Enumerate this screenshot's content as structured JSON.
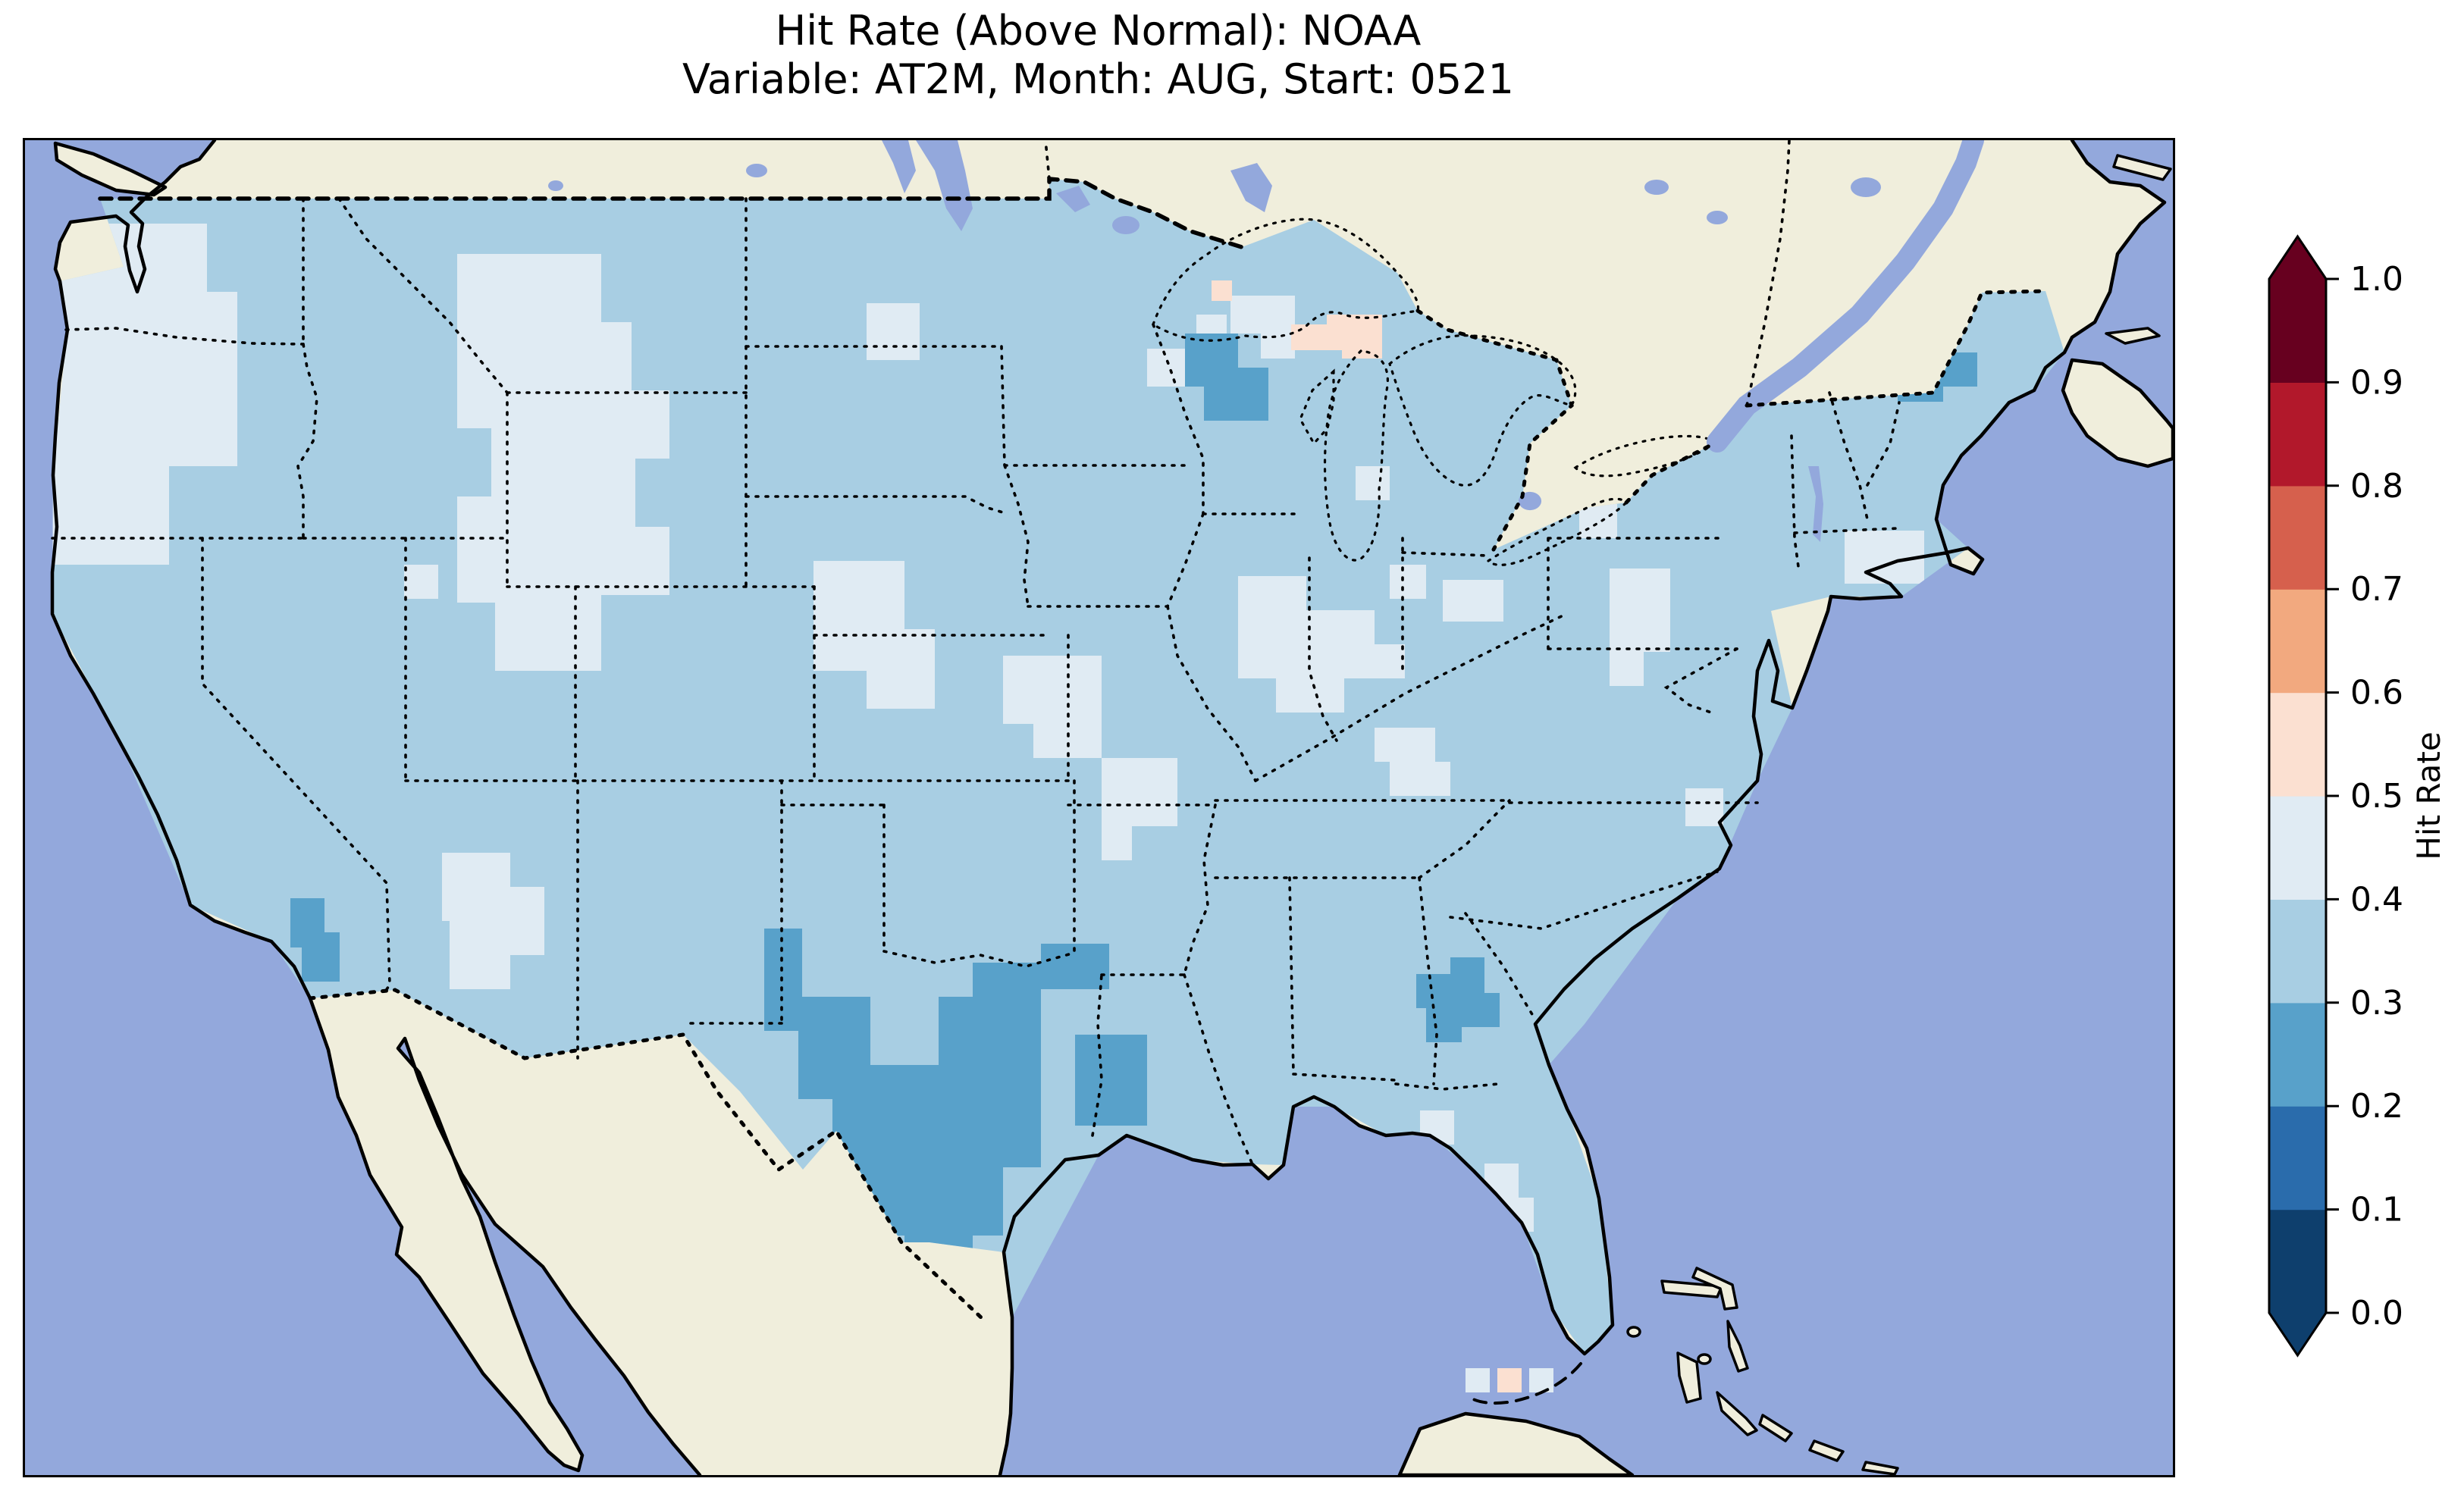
{
  "title": {
    "line1": "Hit Rate (Above Normal): NOAA",
    "line2": "Variable: AT2M, Month: AUG, Start: 0521"
  },
  "colorbar": {
    "label": "Hit Rate",
    "ticks": [
      "1.0",
      "0.9",
      "0.8",
      "0.7",
      "0.6",
      "0.5",
      "0.4",
      "0.3",
      "0.2",
      "0.1",
      "0.0"
    ],
    "tick_values": [
      1.0,
      0.9,
      0.8,
      0.7,
      0.6,
      0.5,
      0.4,
      0.3,
      0.2,
      0.1,
      0.0
    ],
    "extend": "both",
    "levels_bottom_to_top": [
      {
        "range": "0.0–0.1",
        "color": "#0e3f6d"
      },
      {
        "range": "0.1–0.2",
        "color": "#2a6cac"
      },
      {
        "range": "0.2–0.3",
        "color": "#58a1ca"
      },
      {
        "range": "0.3–0.4",
        "color": "#a8cee3"
      },
      {
        "range": "0.4–0.5",
        "color": "#e0ebf3"
      },
      {
        "range": "0.5–0.6",
        "color": "#fbe0d1"
      },
      {
        "range": "0.6–0.7",
        "color": "#f2a97f"
      },
      {
        "range": "0.7–0.8",
        "color": "#d6604d"
      },
      {
        "range": "0.8–0.9",
        "color": "#b2182b"
      },
      {
        "range": "0.9–1.0",
        "color": "#67001f"
      }
    ],
    "extend_over_color": "#67001f",
    "extend_under_color": "#0e3f6d"
  },
  "colors": {
    "ocean": "#93a8dc",
    "lakes": "#8fa5da",
    "land": "#f0eedc",
    "coastline": "#000000",
    "background": "#ffffff"
  },
  "chart_data": {
    "type": "heatmap",
    "title": "Hit Rate (Above Normal): NOAA",
    "subtitle": "Variable: AT2M, Month: AUG, Start: 0521",
    "metric": "Hit Rate (Above Normal)",
    "source": "NOAA",
    "variable": "AT2M",
    "month": "AUG",
    "start": "0521",
    "region": "Contiguous United States, ~1-degree gridded cells on a map with Canada/Mexico masked (land only)",
    "colorbar_label": "Hit Rate",
    "axis_ticks": [
      0.0,
      0.1,
      0.2,
      0.3,
      0.4,
      0.5,
      0.6,
      0.7,
      0.8,
      0.9,
      1.0
    ],
    "colormap": "Discrete RdBu_r, 10 bins from 0.0 to 1.0, extended (pointed arrows) both ends",
    "legend_position": "right vertical colorbar",
    "grid": "off",
    "values_by_region": [
      {
        "region": "Most of CONUS (baseline)",
        "hit_rate": "0.3–0.4"
      },
      {
        "region": "Western Washington / western Oregon",
        "hit_rate": "0.4–0.5"
      },
      {
        "region": "Montana – Wyoming – Utah/Colorado band",
        "hit_rate": "0.4–0.5"
      },
      {
        "region": "Central North/South Dakota cells",
        "hit_rate": "0.4–0.5"
      },
      {
        "region": "Nebraska / Kansas / western Missouri band",
        "hit_rate": "0.4–0.5"
      },
      {
        "region": "Central Arizona",
        "hit_rate": "0.4–0.5"
      },
      {
        "region": "Illinois–Indiana patch",
        "hit_rate": "0.4–0.5"
      },
      {
        "region": "Kentucky patch",
        "hit_rate": "0.4–0.5"
      },
      {
        "region": "Southern Missouri patch",
        "hit_rate": "0.4–0.5"
      },
      {
        "region": "Central Pennsylvania / Maryland patch",
        "hit_rate": "0.4–0.5"
      },
      {
        "region": "Central Florida peninsula",
        "hit_rate": "0.4–0.5"
      },
      {
        "region": "Central/eastern Texas (large V-shaped area to Gulf coast)",
        "hit_rate": "0.2–0.3"
      },
      {
        "region": "Texas–Louisiana border (Sabine) blob",
        "hit_rate": "0.2–0.3"
      },
      {
        "region": "Northern Wisconsin blob",
        "hit_rate": "0.2–0.3"
      },
      {
        "region": "Northern Maine blob",
        "hit_rate": "0.2–0.3"
      },
      {
        "region": "Central Georgia blob",
        "hit_rate": "0.2–0.3"
      },
      {
        "region": "Southern California coastal/inland cells",
        "hit_rate": "0.2–0.3"
      },
      {
        "region": "Upper Peninsula of Michigan (pink cells)",
        "hit_rate": "0.5–0.6"
      },
      {
        "region": "Isolated cell SW of Florida tip (pink)",
        "hit_rate": "0.5–0.6"
      },
      {
        "region": "Cells flanking the pink Florida Straits cell",
        "hit_rate": "0.4–0.5"
      }
    ]
  }
}
